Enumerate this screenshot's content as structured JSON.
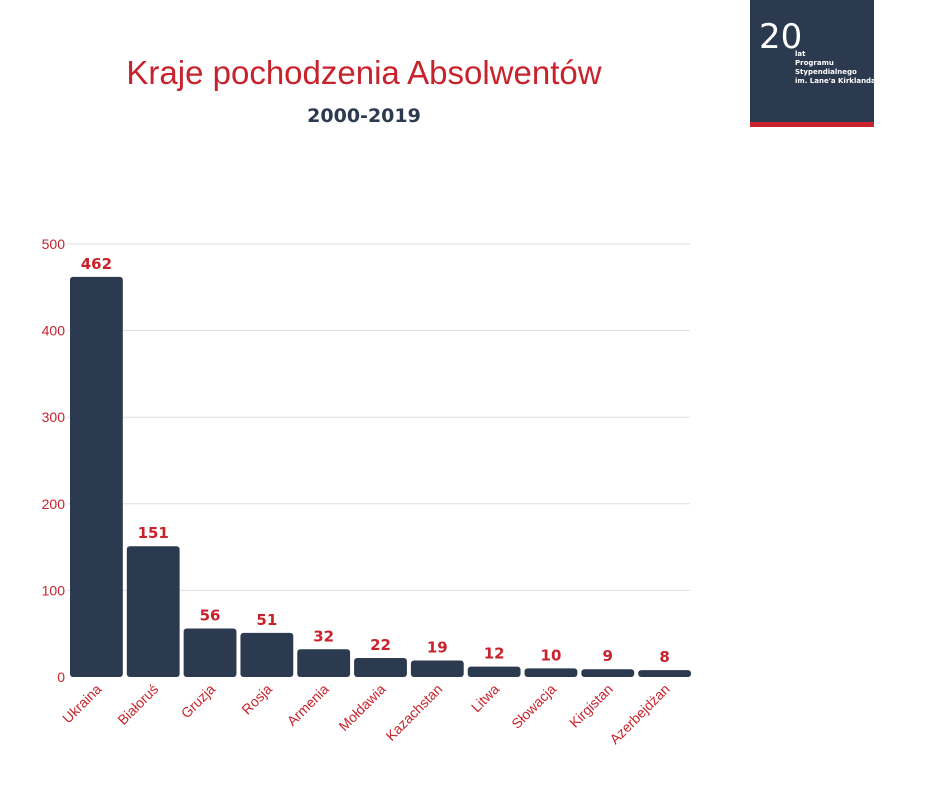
{
  "header": {
    "title": "Kraje pochodzenia Absolwentów",
    "subtitle": "2000-2019"
  },
  "logo": {
    "number": "20",
    "line1": "lat",
    "line2": "Programu",
    "line3": "Stypendialnego",
    "line4": "im. Lane'a Kirklanda"
  },
  "colors": {
    "bar": "#2c3a4f",
    "accent": "#c8232c",
    "grid": "#dddddd"
  },
  "chart_data": {
    "type": "bar",
    "categories": [
      "Ukraina",
      "Białoruś",
      "Gruzja",
      "Rosja",
      "Armenia",
      "Mołdawia",
      "Kazachstan",
      "Litwa",
      "Słowacja",
      "Kirgistan",
      "Azerbejdżan"
    ],
    "values": [
      462,
      151,
      56,
      51,
      32,
      22,
      19,
      12,
      10,
      9,
      8
    ],
    "ylim": [
      0,
      500
    ],
    "yticks": [
      0,
      100,
      200,
      300,
      400,
      500
    ],
    "grid": true,
    "data_labels": true
  }
}
